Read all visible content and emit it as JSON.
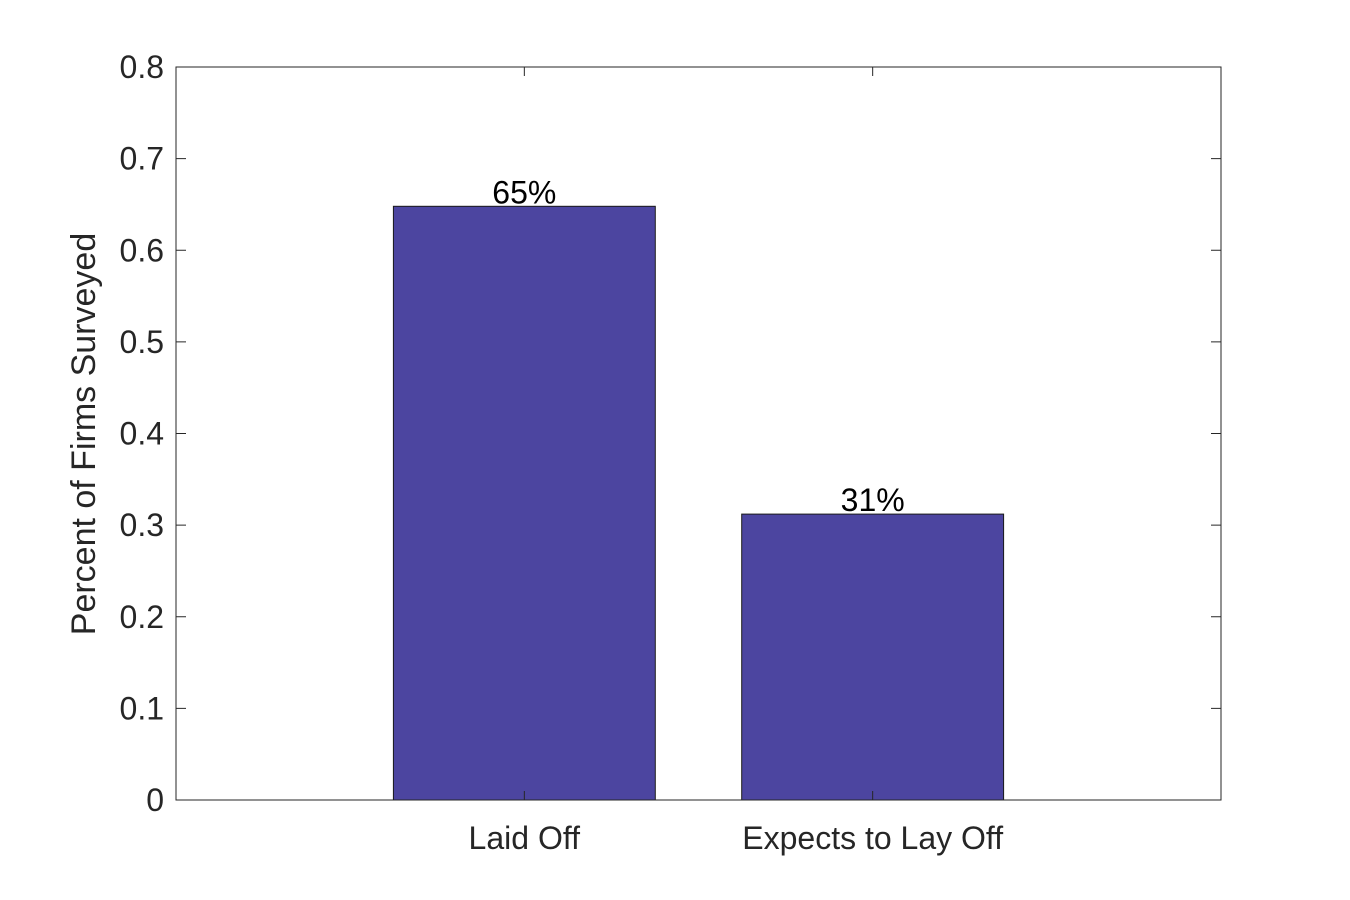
{
  "chart_data": {
    "type": "bar",
    "categories": [
      "Laid Off",
      "Expects to Lay Off"
    ],
    "values": [
      0.648,
      0.312
    ],
    "data_labels": [
      "65%",
      "31%"
    ],
    "title": "",
    "xlabel": "",
    "ylabel": "Percent of Firms Surveyed",
    "ylim": [
      0,
      0.8
    ],
    "yticks": [
      0,
      0.1,
      0.2,
      0.3,
      0.4,
      0.5,
      0.6,
      0.7,
      0.8
    ],
    "ytick_labels": [
      "0",
      "0.1",
      "0.2",
      "0.3",
      "0.4",
      "0.5",
      "0.6",
      "0.7",
      "0.8"
    ],
    "grid": false,
    "bar_color": "#4C45A0",
    "axis_color": "#262626"
  }
}
